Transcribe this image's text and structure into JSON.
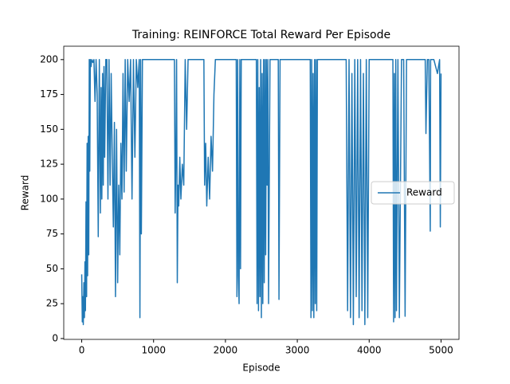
{
  "chart_data": {
    "type": "line",
    "title": "Training: REINFORCE Total Reward Per Episode",
    "xlabel": "Episode",
    "ylabel": "Reward",
    "x": [
      0,
      8,
      15,
      22,
      30,
      38,
      45,
      52,
      60,
      68,
      75,
      82,
      90,
      98,
      105,
      112,
      120,
      130,
      140,
      155,
      170,
      185,
      200,
      215,
      230,
      245,
      260,
      270,
      280,
      290,
      300,
      310,
      320,
      335,
      350,
      365,
      380,
      395,
      410,
      425,
      440,
      455,
      470,
      485,
      500,
      515,
      530,
      545,
      560,
      575,
      590,
      605,
      620,
      640,
      660,
      680,
      700,
      720,
      740,
      760,
      780,
      800,
      810,
      820,
      830,
      845,
      870,
      900,
      1000,
      1100,
      1200,
      1290,
      1300,
      1310,
      1320,
      1330,
      1340,
      1350,
      1365,
      1380,
      1400,
      1420,
      1440,
      1460,
      1480,
      1500,
      1600,
      1700,
      1710,
      1725,
      1740,
      1760,
      1780,
      1800,
      1820,
      1840,
      1860,
      1900,
      2000,
      2100,
      2150,
      2160,
      2170,
      2180,
      2190,
      2200,
      2210,
      2220,
      2240,
      2300,
      2400,
      2430,
      2440,
      2450,
      2460,
      2470,
      2480,
      2490,
      2500,
      2510,
      2520,
      2530,
      2540,
      2550,
      2560,
      2570,
      2580,
      2590,
      2600,
      2620,
      2650,
      2700,
      2735,
      2745,
      2760,
      2800,
      3000,
      3180,
      3190,
      3200,
      3210,
      3220,
      3230,
      3240,
      3250,
      3260,
      3270,
      3280,
      3300,
      3500,
      3680,
      3700,
      3720,
      3740,
      3760,
      3780,
      3800,
      3820,
      3840,
      3860,
      3880,
      3900,
      3920,
      3940,
      3960,
      3980,
      4000,
      4100,
      4300,
      4330,
      4340,
      4350,
      4360,
      4370,
      4380,
      4400,
      4420,
      4450,
      4480,
      4500,
      4520,
      4600,
      4780,
      4790,
      4800,
      4810,
      4830,
      4850,
      4855,
      4870,
      4900,
      4950,
      4980,
      4990,
      5000
    ],
    "series": [
      {
        "name": "Reward",
        "color": "#1f77b4",
        "values": [
          46,
          12,
          30,
          10,
          40,
          15,
          55,
          20,
          98,
          30,
          140,
          45,
          145,
          60,
          200,
          120,
          200,
          195,
          200,
          198,
          200,
          170,
          200,
          175,
          73,
          200,
          90,
          180,
          100,
          190,
          110,
          195,
          130,
          200,
          200,
          100,
          200,
          110,
          190,
          130,
          80,
          155,
          30,
          150,
          40,
          110,
          60,
          140,
          100,
          190,
          105,
          200,
          120,
          200,
          170,
          200,
          100,
          200,
          130,
          200,
          180,
          200,
          15,
          200,
          75,
          200,
          200,
          200,
          200,
          200,
          200,
          200,
          90,
          130,
          200,
          40,
          110,
          95,
          130,
          100,
          125,
          110,
          200,
          150,
          200,
          200,
          200,
          200,
          110,
          140,
          95,
          130,
          100,
          145,
          120,
          175,
          200,
          200,
          200,
          200,
          200,
          30,
          200,
          45,
          25,
          200,
          50,
          200,
          200,
          200,
          200,
          200,
          25,
          200,
          20,
          180,
          30,
          200,
          15,
          190,
          25,
          200,
          40,
          200,
          60,
          200,
          110,
          200,
          25,
          200,
          200,
          200,
          200,
          28,
          200,
          200,
          200,
          200,
          15,
          200,
          20,
          190,
          15,
          200,
          25,
          200,
          20,
          200,
          200,
          200,
          200,
          20,
          200,
          15,
          190,
          10,
          200,
          30,
          200,
          15,
          200,
          20,
          190,
          10,
          200,
          15,
          200,
          200,
          200,
          200,
          12,
          190,
          15,
          200,
          20,
          200,
          15,
          200,
          200,
          16,
          200,
          200,
          200,
          147,
          175,
          200,
          200,
          77,
          200,
          200,
          200,
          190,
          200,
          80,
          190
        ]
      }
    ],
    "xlim": [
      -250,
      5250
    ],
    "xticks": [
      0,
      1000,
      2000,
      3000,
      4000,
      5000
    ],
    "ylim": [
      -0.6,
      209.6
    ],
    "yticks": [
      0,
      25,
      50,
      75,
      100,
      125,
      150,
      175,
      200
    ],
    "legend": "center right"
  }
}
